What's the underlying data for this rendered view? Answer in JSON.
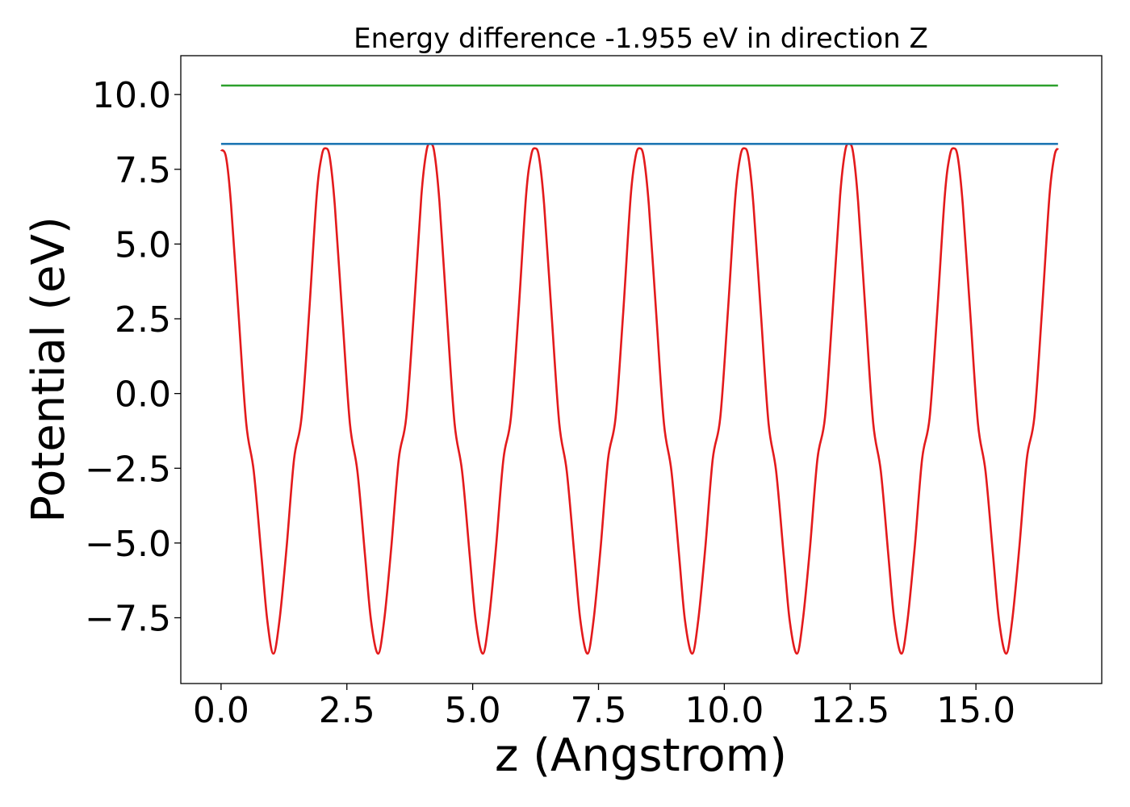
{
  "chart_data": {
    "type": "line",
    "title": "Energy difference -1.955 eV in direction Z",
    "xlabel": "z (Angstrom)",
    "ylabel": "Potential (eV)",
    "xlim": [
      -0.8,
      17.5
    ],
    "ylim": [
      -9.7,
      11.3
    ],
    "xticks": [
      0.0,
      2.5,
      5.0,
      7.5,
      10.0,
      12.5,
      15.0
    ],
    "xtick_labels": [
      "0.0",
      "2.5",
      "5.0",
      "7.5",
      "10.0",
      "12.5",
      "15.0"
    ],
    "yticks": [
      -7.5,
      -5.0,
      -2.5,
      0.0,
      2.5,
      5.0,
      7.5,
      10.0
    ],
    "ytick_labels": [
      "−7.5",
      "−5.0",
      "−2.5",
      "0.0",
      "2.5",
      "5.0",
      "7.5",
      "10.0"
    ],
    "grid": false,
    "colors": {
      "potential": "#e31a1c",
      "level_low": "#1f77b4",
      "level_high": "#2ca02c"
    },
    "series": [
      {
        "key": "potential",
        "color": "#e31a1c",
        "x": [
          0.0,
          0.1,
          0.2,
          0.35,
          0.5,
          0.65,
          0.8,
          0.92,
          1.04,
          1.16,
          1.3,
          1.45,
          1.6,
          1.75,
          1.9,
          2.0,
          2.08,
          2.16,
          2.26,
          2.41,
          2.56,
          2.71,
          2.86,
          2.98,
          3.12,
          3.24,
          3.38,
          3.53,
          3.68,
          3.83,
          3.98,
          4.08,
          4.16,
          4.24,
          4.34,
          4.49,
          4.64,
          4.79,
          4.94,
          5.06,
          5.2,
          5.32,
          5.46,
          5.61,
          5.76,
          5.91,
          6.06,
          6.16,
          6.24,
          6.32,
          6.42,
          6.57,
          6.72,
          6.87,
          7.02,
          7.14,
          7.28,
          7.4,
          7.54,
          7.69,
          7.84,
          7.99,
          8.14,
          8.24,
          8.32,
          8.4,
          8.5,
          8.65,
          8.8,
          8.95,
          9.1,
          9.22,
          9.36,
          9.48,
          9.62,
          9.77,
          9.92,
          10.07,
          10.22,
          10.32,
          10.4,
          10.48,
          10.58,
          10.73,
          10.88,
          11.03,
          11.18,
          11.3,
          11.44,
          11.56,
          11.7,
          11.85,
          12.0,
          12.15,
          12.3,
          12.4,
          12.48,
          12.56,
          12.66,
          12.81,
          12.96,
          13.11,
          13.26,
          13.38,
          13.52,
          13.64,
          13.78,
          13.93,
          14.08,
          14.23,
          14.38,
          14.48,
          14.56,
          14.64,
          14.74,
          14.89,
          15.04,
          15.19,
          15.34,
          15.46,
          15.6,
          15.72,
          15.86,
          16.01,
          16.16,
          16.31,
          16.46,
          16.56,
          16.63
        ],
        "y": [
          8.15,
          7.9,
          6.3,
          2.6,
          -1.0,
          -2.6,
          -5.4,
          -7.6,
          -8.7,
          -7.6,
          -5.2,
          -2.2,
          -0.8,
          2.7,
          6.6,
          7.95,
          8.2,
          7.9,
          6.3,
          2.6,
          -1.0,
          -2.6,
          -5.4,
          -7.6,
          -8.7,
          -7.6,
          -5.2,
          -2.2,
          -0.8,
          2.7,
          6.6,
          8.1,
          8.35,
          8.05,
          6.4,
          2.6,
          -1.0,
          -2.6,
          -5.4,
          -7.6,
          -8.7,
          -7.6,
          -5.2,
          -2.2,
          -0.8,
          2.7,
          6.6,
          7.95,
          8.2,
          7.9,
          6.3,
          2.6,
          -1.0,
          -2.6,
          -5.4,
          -7.6,
          -8.7,
          -7.6,
          -5.2,
          -2.2,
          -0.8,
          2.7,
          6.6,
          7.95,
          8.2,
          7.9,
          6.3,
          2.6,
          -1.0,
          -2.6,
          -5.4,
          -7.6,
          -8.7,
          -7.6,
          -5.2,
          -2.2,
          -0.8,
          2.7,
          6.6,
          7.95,
          8.2,
          7.9,
          6.3,
          2.6,
          -1.0,
          -2.6,
          -5.4,
          -7.6,
          -8.7,
          -7.6,
          -5.2,
          -2.2,
          -0.8,
          2.7,
          6.6,
          8.1,
          8.35,
          8.05,
          6.4,
          2.6,
          -1.0,
          -2.6,
          -5.4,
          -7.6,
          -8.7,
          -7.6,
          -5.2,
          -2.2,
          -0.8,
          2.7,
          6.6,
          7.95,
          8.2,
          7.9,
          6.3,
          2.6,
          -1.0,
          -2.6,
          -5.4,
          -7.6,
          -8.7,
          -7.6,
          -5.2,
          -2.2,
          -0.8,
          2.7,
          6.6,
          7.95,
          8.2
        ]
      },
      {
        "key": "level_low",
        "color": "#1f77b4",
        "x": [
          0.0,
          16.63
        ],
        "y": [
          8.35,
          8.35
        ]
      },
      {
        "key": "level_high",
        "color": "#2ca02c",
        "x": [
          0.0,
          16.63
        ],
        "y": [
          10.3,
          10.3
        ]
      }
    ]
  }
}
